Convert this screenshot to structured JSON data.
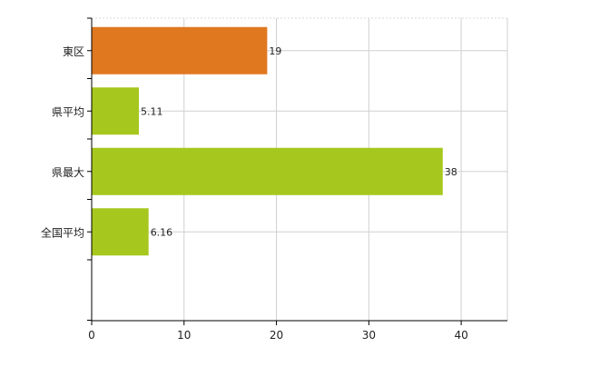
{
  "chart_data": {
    "type": "bar",
    "orientation": "horizontal",
    "categories": [
      "東区",
      "県平均",
      "県最大",
      "全国平均"
    ],
    "values": [
      19,
      5.11,
      38,
      6.16
    ],
    "data_labels": [
      "19",
      "5.11",
      "38",
      "6.16"
    ],
    "bar_colors": [
      "#e07820",
      "#a6c81e",
      "#a6c81e",
      "#a6c81e"
    ],
    "xlim": [
      0,
      45
    ],
    "xticks": [
      0,
      10,
      20,
      30,
      40
    ],
    "xtick_labels": [
      "0",
      "10",
      "20",
      "30",
      "40"
    ],
    "grid": true,
    "legend": "none",
    "title": "",
    "xlabel": "",
    "ylabel": ""
  }
}
